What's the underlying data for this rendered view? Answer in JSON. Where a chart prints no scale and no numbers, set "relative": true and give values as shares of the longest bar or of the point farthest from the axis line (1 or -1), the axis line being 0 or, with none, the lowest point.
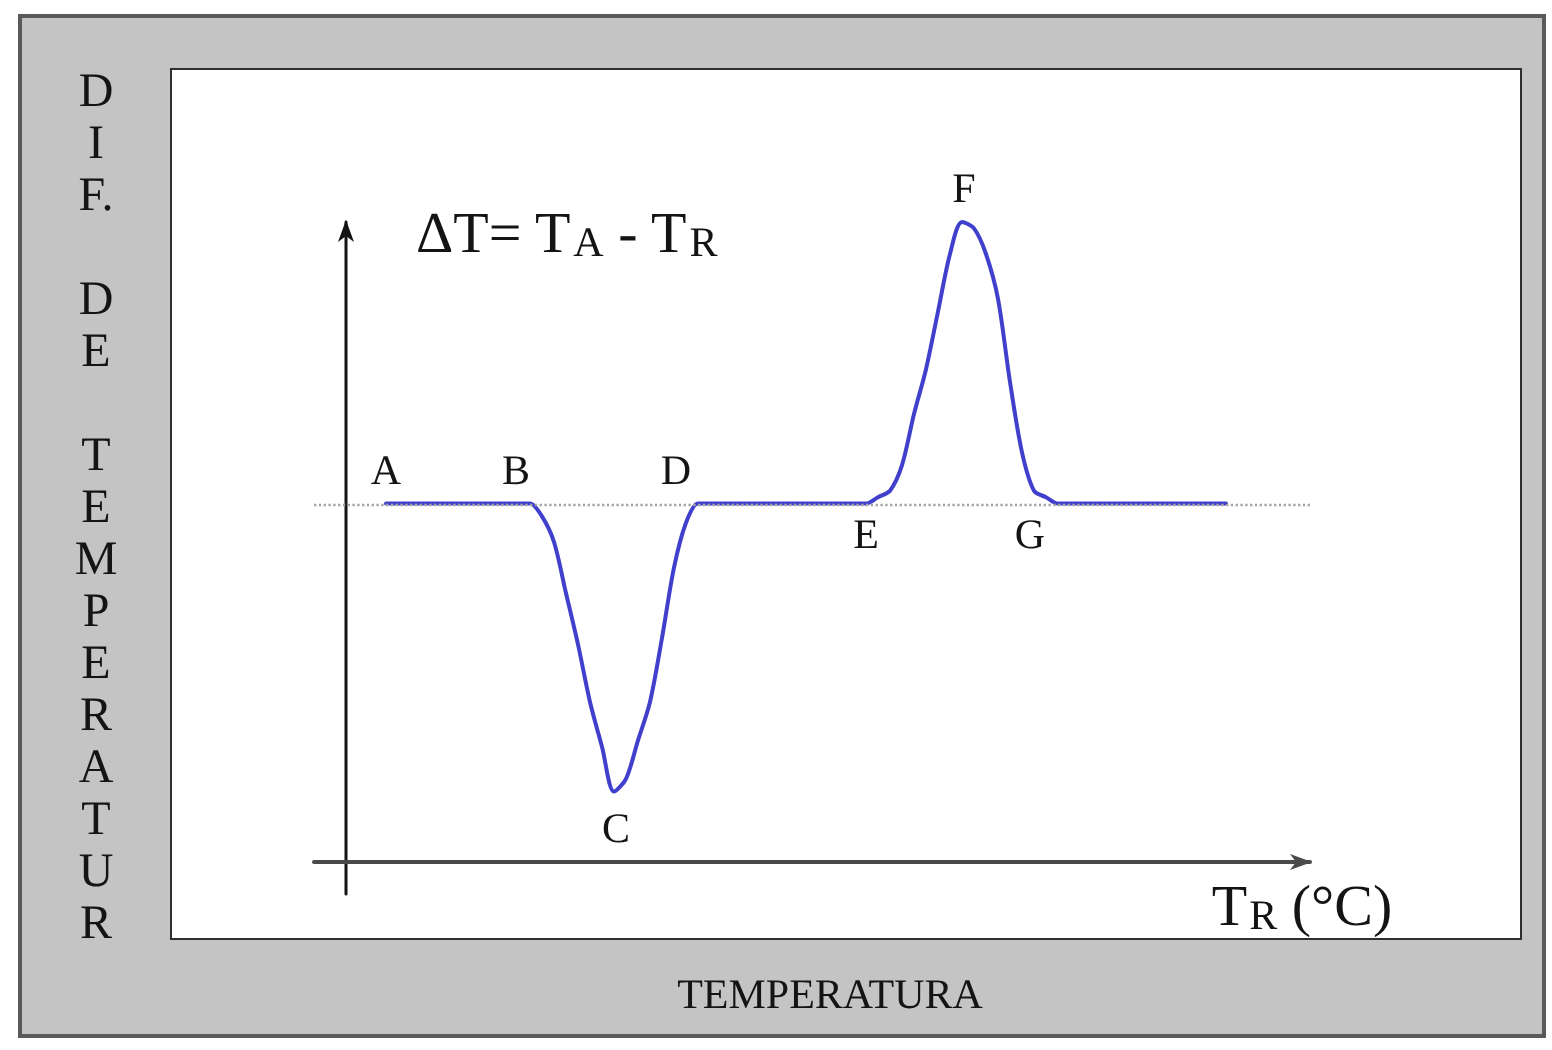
{
  "chart_data": {
    "type": "line",
    "xlabel": "T$_{R}$ (°C)",
    "ylabel": "ΔT= T$_{A}$ - T$_{R}$",
    "relative": true,
    "marker": "none",
    "line_style": "solid",
    "annotations": [
      "DIF. DE TEMPERATUR",
      "TEMPERATURA",
      {
        "text": "A",
        "y": 0.56
      },
      {
        "text": "B",
        "y": 0.56
      },
      {
        "text": "C",
        "y": 0.11
      },
      {
        "text": "D",
        "y": 0.56
      },
      {
        "text": "E",
        "y": 0.56
      },
      {
        "text": "F",
        "y": 1
      },
      {
        "text": "G",
        "y": 0.56
      }
    ],
    "categories": [
      null,
      null,
      null,
      null,
      null,
      null,
      null,
      null,
      null,
      null,
      null,
      null,
      null,
      null,
      null,
      null,
      null,
      null,
      null,
      null,
      null,
      null,
      null,
      null,
      null,
      null,
      null,
      null,
      null,
      null,
      null,
      null,
      null,
      null,
      null,
      null,
      null,
      null,
      null,
      null,
      null,
      null,
      null,
      null,
      null,
      null,
      null,
      null,
      null,
      null,
      null,
      null,
      null,
      null,
      null,
      null,
      null,
      null,
      null,
      null,
      null,
      null,
      null,
      null,
      null,
      null,
      null,
      null,
      null,
      null,
      null,
      null,
      null,
      null,
      null,
      null,
      null,
      null,
      null,
      null,
      null,
      null,
      null,
      null
    ],
    "series": [
      {
        "color": "#4040cc",
        "values": [
          null,
          null,
          null,
          null,
          null,
          null,
          0.56,
          0.56,
          0.56,
          0.56,
          0.56,
          0.56,
          0.56,
          0.56,
          0.56,
          0.56,
          0.56,
          0.56,
          0.56,
          0.54,
          0.5,
          0.42,
          0.34,
          0.25,
          0.18,
          0.11,
          0.13,
          0.19,
          0.25,
          0.35,
          0.46,
          0.53,
          0.56,
          0.56,
          0.56,
          0.56,
          0.56,
          0.56,
          0.56,
          0.56,
          0.56,
          0.56,
          0.56,
          0.56,
          0.56,
          0.56,
          0.56,
          0.57,
          0.58,
          0.62,
          0.7,
          0.77,
          0.86,
          0.95,
          1,
          0.99,
          0.95,
          0.88,
          0.75,
          0.64,
          0.58,
          0.57,
          0.56,
          0.56,
          0.56,
          0.56,
          0.56,
          0.56,
          0.56,
          0.56,
          0.56,
          0.56,
          0.56,
          0.56,
          0.56,
          0.56,
          0.56,
          null,
          null,
          null,
          null,
          null,
          null,
          null
        ]
      }
    ],
    "ref_lines": [
      {
        "axis": "y",
        "value": 0.56,
        "color": "#a6a6a6",
        "line_style": "dotted"
      }
    ]
  }
}
